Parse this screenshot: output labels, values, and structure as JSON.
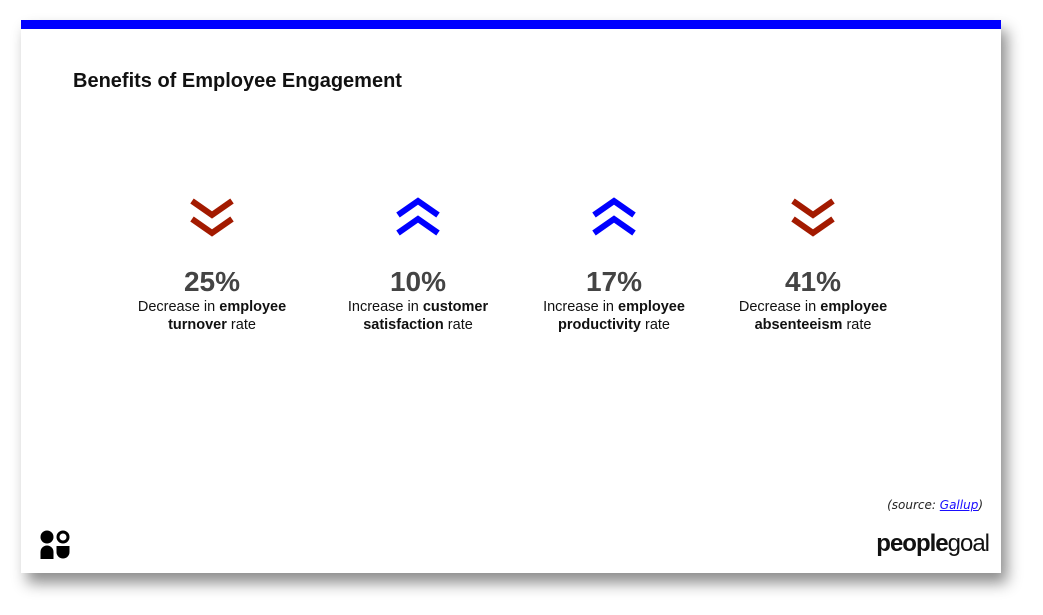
{
  "title": "Benefits of Employee Engagement",
  "accent_color": "#0000ff",
  "stats": [
    {
      "icon": "double-chevron-down-icon",
      "color": "#a31a00",
      "value": "25%",
      "pre": "Decrease in ",
      "bold1": "employee",
      "bold2": "turnover",
      "post": " rate"
    },
    {
      "icon": "double-chevron-up-icon",
      "color": "#0000ff",
      "value": "10%",
      "pre": "Increase in ",
      "bold1": "customer",
      "bold2": "satisfaction",
      "post": " rate"
    },
    {
      "icon": "double-chevron-up-icon",
      "color": "#0000ff",
      "value": "17%",
      "pre": "Increase in ",
      "bold1": "employee",
      "bold2": "productivity",
      "post": " rate"
    },
    {
      "icon": "double-chevron-down-icon",
      "color": "#a31a00",
      "value": "41%",
      "pre": "Decrease in ",
      "bold1": "employee",
      "bold2": "absenteeism",
      "post": " rate"
    }
  ],
  "source": {
    "prefix": "(source: ",
    "link": "Gallup",
    "suffix": ")"
  },
  "logo": {
    "part1": "people",
    "part2": "goal"
  }
}
